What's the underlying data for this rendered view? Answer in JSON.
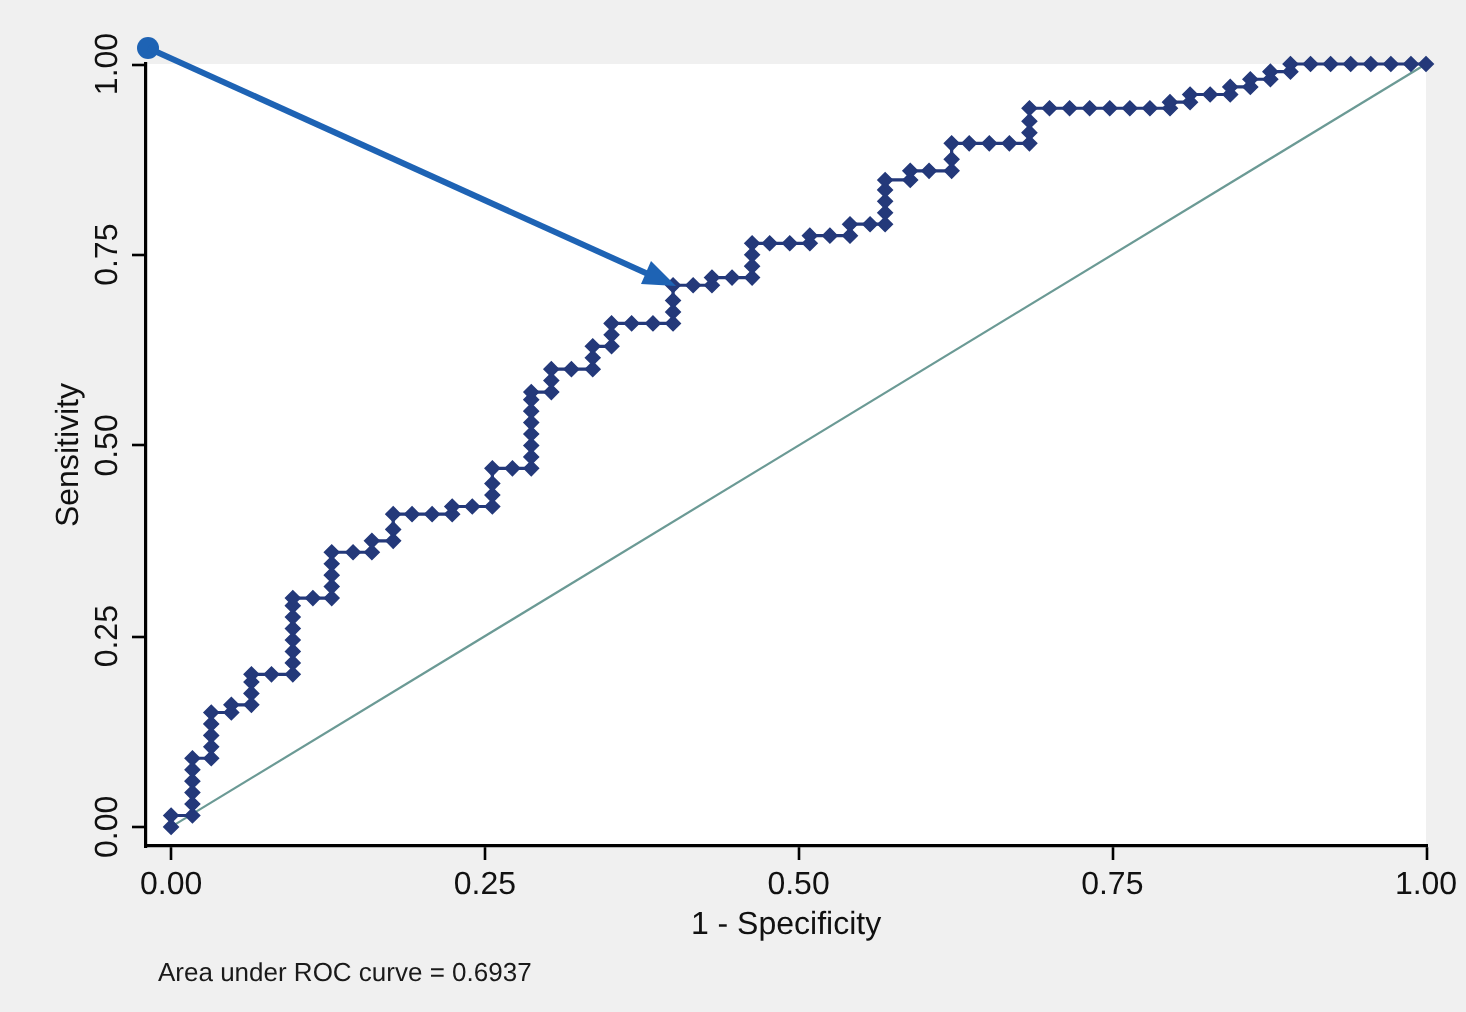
{
  "chart_data": {
    "type": "line",
    "xlabel": "1 - Specificity",
    "ylabel": "Sensitivity",
    "annotations": [
      "Area under ROC curve = 0.6937"
    ],
    "series": [
      {
        "color": "#24397a",
        "x": [
          0,
          0,
          0.017,
          0.017,
          0.017,
          0.017,
          0.017,
          0.017,
          0.032,
          0.032,
          0.032,
          0.032,
          0.032,
          0.048,
          0.048,
          0.064,
          0.064,
          0.064,
          0.064,
          0.08,
          0.097,
          0.097,
          0.097,
          0.097,
          0.097,
          0.097,
          0.097,
          0.097,
          0.113,
          0.128,
          0.128,
          0.128,
          0.128,
          0.128,
          0.145,
          0.16,
          0.16,
          0.177,
          0.177,
          0.177,
          0.192,
          0.208,
          0.224,
          0.224,
          0.24,
          0.256,
          0.256,
          0.256,
          0.256,
          0.272,
          0.287,
          0.287,
          0.287,
          0.287,
          0.287,
          0.287,
          0.287,
          0.287,
          0.303,
          0.303,
          0.303,
          0.319,
          0.336,
          0.336,
          0.336,
          0.351,
          0.351,
          0.351,
          0.367,
          0.384,
          0.4,
          0.4,
          0.4,
          0.4,
          0.416,
          0.431,
          0.431,
          0.447,
          0.463,
          0.463,
          0.463,
          0.463,
          0.477,
          0.493,
          0.509,
          0.509,
          0.525,
          0.541,
          0.541,
          0.557,
          0.569,
          0.569,
          0.569,
          0.569,
          0.569,
          0.589,
          0.589,
          0.604,
          0.622,
          0.622,
          0.622,
          0.636,
          0.652,
          0.668,
          0.684,
          0.684,
          0.684,
          0.684,
          0.7,
          0.716,
          0.732,
          0.748,
          0.764,
          0.78,
          0.796,
          0.796,
          0.812,
          0.812,
          0.828,
          0.844,
          0.844,
          0.86,
          0.86,
          0.876,
          0.876,
          0.892,
          0.892,
          0.908,
          0.924,
          0.94,
          0.956,
          0.972,
          0.988,
          1
        ],
        "values": [
          0,
          0.015,
          0.015,
          0.03,
          0.045,
          0.06,
          0.075,
          0.09,
          0.09,
          0.105,
          0.12,
          0.135,
          0.15,
          0.15,
          0.16,
          0.16,
          0.175,
          0.19,
          0.2,
          0.2,
          0.2,
          0.215,
          0.23,
          0.245,
          0.26,
          0.275,
          0.29,
          0.3,
          0.3,
          0.3,
          0.315,
          0.33,
          0.345,
          0.36,
          0.36,
          0.36,
          0.375,
          0.375,
          0.39,
          0.41,
          0.41,
          0.41,
          0.41,
          0.42,
          0.42,
          0.42,
          0.435,
          0.45,
          0.47,
          0.47,
          0.47,
          0.485,
          0.5,
          0.515,
          0.53,
          0.545,
          0.56,
          0.57,
          0.57,
          0.585,
          0.6,
          0.6,
          0.6,
          0.615,
          0.63,
          0.63,
          0.645,
          0.66,
          0.66,
          0.66,
          0.66,
          0.675,
          0.69,
          0.71,
          0.71,
          0.71,
          0.72,
          0.72,
          0.72,
          0.735,
          0.75,
          0.765,
          0.765,
          0.765,
          0.765,
          0.775,
          0.775,
          0.775,
          0.79,
          0.79,
          0.79,
          0.805,
          0.82,
          0.835,
          0.848,
          0.848,
          0.86,
          0.86,
          0.86,
          0.875,
          0.896,
          0.896,
          0.896,
          0.896,
          0.896,
          0.91,
          0.925,
          0.942,
          0.942,
          0.942,
          0.942,
          0.942,
          0.942,
          0.942,
          0.942,
          0.95,
          0.95,
          0.96,
          0.96,
          0.96,
          0.97,
          0.97,
          0.98,
          0.98,
          0.99,
          0.99,
          1,
          1,
          1,
          1,
          1,
          1,
          1,
          1
        ]
      },
      {
        "type": "line",
        "x": [
          0,
          1
        ],
        "values": [
          0,
          1
        ],
        "color": "#6b9a95",
        "marker": "none"
      }
    ],
    "xlim": [
      -0.02,
      1
    ],
    "ylim": [
      -0.025,
      1
    ],
    "xticks": [
      {
        "value": 0,
        "label": "0.00"
      },
      0.25,
      {
        "value": 0.5,
        "label": "0.50"
      },
      0.75,
      {
        "value": 1,
        "label": "1.00"
      }
    ],
    "yticks": [
      {
        "value": 0,
        "label": "0.00"
      },
      0.25,
      {
        "value": 0.5,
        "label": "0.50"
      },
      0.75,
      {
        "value": 1,
        "label": "1.00"
      }
    ],
    "marker": "diamond",
    "line_style": "solid"
  }
}
